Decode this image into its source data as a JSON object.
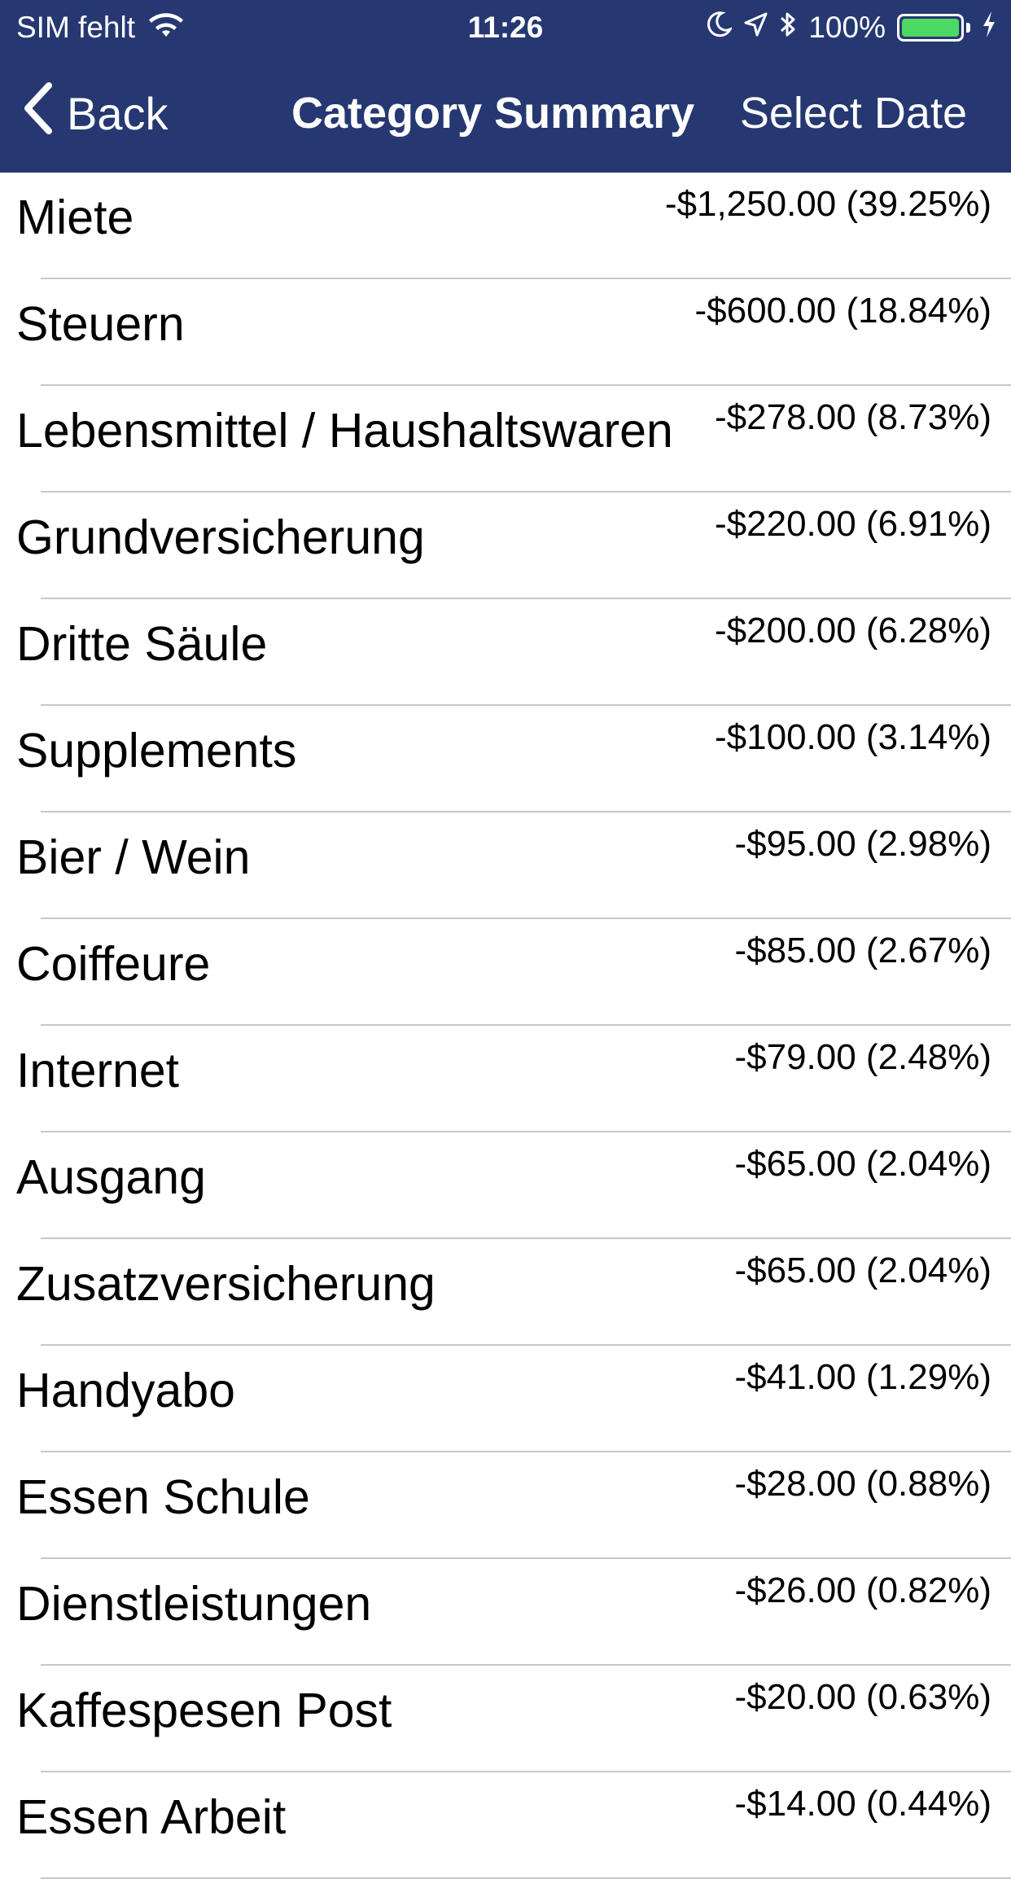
{
  "status_bar": {
    "carrier": "SIM fehlt",
    "time": "11:26",
    "battery": "100%",
    "battery_level": 1.0,
    "battery_color": "#4cd964"
  },
  "nav": {
    "back_label": "Back",
    "title": "Category Summary",
    "right_label": "Select Date",
    "background_color": "#263871"
  },
  "rows": [
    {
      "name": "Miete",
      "value": "-$1,250.00 (39.25%)"
    },
    {
      "name": "Steuern",
      "value": "-$600.00 (18.84%)"
    },
    {
      "name": "Lebensmittel / Haushaltswaren",
      "value": "-$278.00 (8.73%)"
    },
    {
      "name": "Grundversicherung",
      "value": "-$220.00 (6.91%)"
    },
    {
      "name": "Dritte Säule",
      "value": "-$200.00 (6.28%)"
    },
    {
      "name": "Supplements",
      "value": "-$100.00 (3.14%)"
    },
    {
      "name": "Bier / Wein",
      "value": "-$95.00 (2.98%)"
    },
    {
      "name": "Coiffeure",
      "value": "-$85.00 (2.67%)"
    },
    {
      "name": "Internet",
      "value": "-$79.00 (2.48%)"
    },
    {
      "name": "Ausgang",
      "value": "-$65.00 (2.04%)"
    },
    {
      "name": "Zusatzversicherung",
      "value": "-$65.00 (2.04%)"
    },
    {
      "name": "Handyabo",
      "value": "-$41.00 (1.29%)"
    },
    {
      "name": "Essen Schule",
      "value": "-$28.00 (0.88%)"
    },
    {
      "name": "Dienstleistungen",
      "value": "-$26.00 (0.82%)"
    },
    {
      "name": "Kaffespesen Post",
      "value": "-$20.00 (0.63%)"
    },
    {
      "name": "Essen Arbeit",
      "value": "-$14.00 (0.44%)"
    }
  ]
}
